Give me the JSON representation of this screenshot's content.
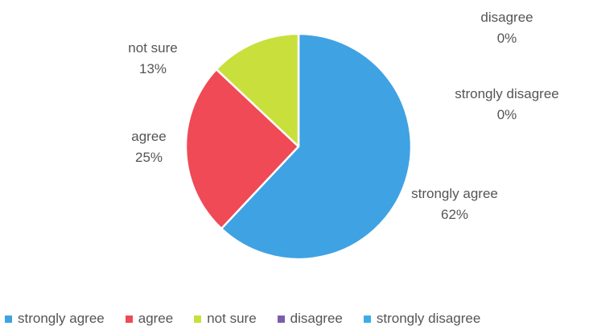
{
  "chart_data": {
    "type": "pie",
    "title": "",
    "categories": [
      "strongly agree",
      "agree",
      "not sure",
      "disagree",
      "strongly disagree"
    ],
    "values": [
      62,
      25,
      13,
      0,
      0
    ],
    "value_labels": [
      "62%",
      "25%",
      "13%",
      "0%",
      "0%"
    ],
    "colors": [
      "#3fa2e3",
      "#ef4a56",
      "#c9df3b",
      "#7a5ea8",
      "#39aee6"
    ],
    "legend": "bottom",
    "start_angle": "12 o'clock",
    "direction": "clockwise"
  }
}
